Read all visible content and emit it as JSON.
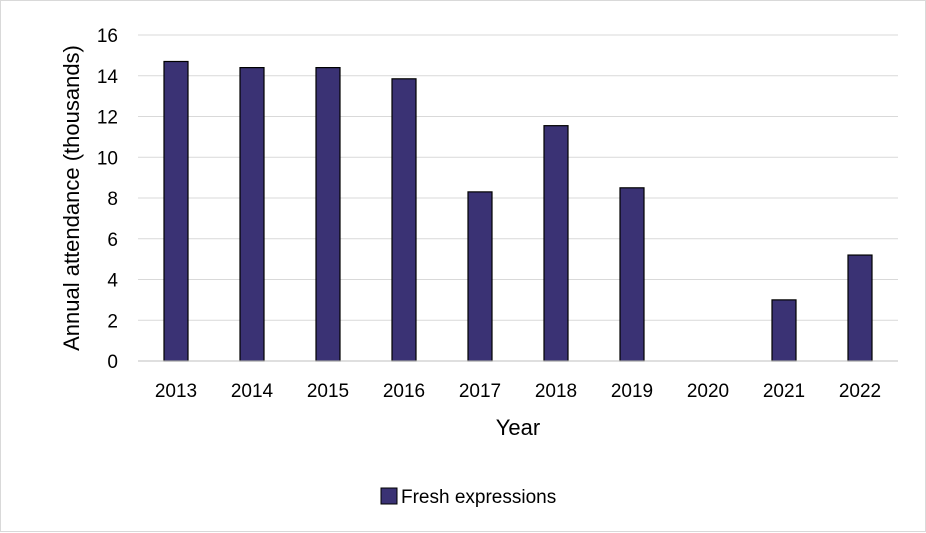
{
  "chart_data": {
    "type": "bar",
    "categories": [
      "2013",
      "2014",
      "2015",
      "2016",
      "2017",
      "2018",
      "2019",
      "2020",
      "2021",
      "2022"
    ],
    "series": [
      {
        "name": "Fresh expressions",
        "values": [
          14.7,
          14.4,
          14.4,
          13.85,
          8.3,
          11.55,
          8.5,
          0,
          3.0,
          5.2
        ],
        "color": "#3a3274"
      }
    ],
    "xlabel": "Year",
    "ylabel": "Annual attendance (thousands)",
    "ylim": [
      0,
      16
    ],
    "yticks": [
      "0",
      "2",
      "4",
      "6",
      "8",
      "10",
      "12",
      "14",
      "16"
    ],
    "grid": true,
    "legend_position": "bottom",
    "colors": {
      "bar": "#3a3274",
      "bar_outline": "#000000",
      "grid": "#d9d9d9",
      "axis": "#bfbfbf"
    }
  }
}
